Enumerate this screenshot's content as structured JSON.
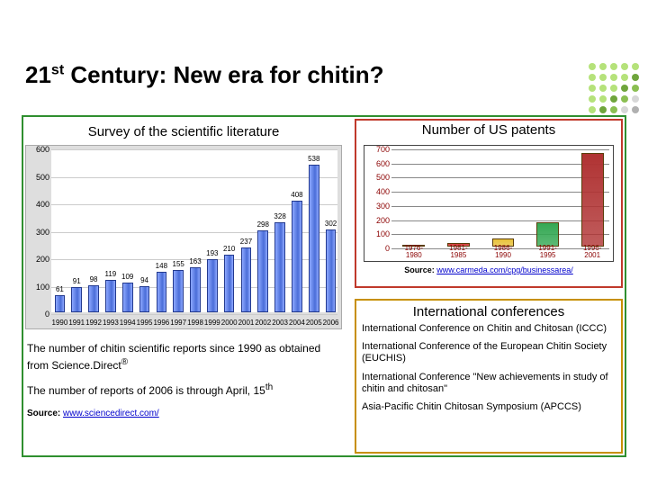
{
  "title_pre": "21",
  "title_sup": "st",
  "title_post": " Century: New era for chitin?",
  "decoration_colors": [
    "#b5e27a",
    "#b5e27a",
    "#b5e27a",
    "#b5e27a",
    "#b5e27a",
    "#b5e27a",
    "#b5e27a",
    "#b5e27a",
    "#b5e27a",
    "#6fa53c",
    "#b5e27a",
    "#b5e27a",
    "#b5e27a",
    "#6fa53c",
    "#8bbf52",
    "#b5e27a",
    "#b5e27a",
    "#6fa53c",
    "#8bbf52",
    "#d7d7d7",
    "#b5e27a",
    "#6fa53c",
    "#8bbf52",
    "#d7d7d7",
    "#b0b0b0"
  ],
  "left": {
    "title": "Survey of the scientific literature",
    "chart": {
      "type": "bar",
      "ylim": [
        0,
        600
      ],
      "ytick_step": 100,
      "grid_color": "#cccccc",
      "plot_bg": "#ffffff",
      "panel_bg": "#dedede",
      "bar_color_start": "#8da8ff",
      "bar_color_mid": "#4a6dd8",
      "bar_border": "#233a8f",
      "categories": [
        "1990",
        "1991",
        "1992",
        "1993",
        "1994",
        "1995",
        "1996",
        "1997",
        "1998",
        "1999",
        "2000",
        "2001",
        "2002",
        "2003",
        "2004",
        "2005",
        "2006"
      ],
      "values": [
        61,
        91,
        98,
        119,
        109,
        94,
        148,
        155,
        163,
        193,
        210,
        237,
        298,
        328,
        408,
        538,
        302
      ]
    },
    "note1_a": "The number of chitin scientific reports since 1990 as obtained from Science.Direct",
    "note1_sup": "®",
    "note2_a": "The number of reports of 2006 is through April, 15",
    "note2_sup": "th",
    "source_label": "Source:",
    "source_link": "www.sciencedirect.com/"
  },
  "patents": {
    "title": "Number of US patents",
    "chart": {
      "type": "bar",
      "ylim": [
        0,
        700
      ],
      "ytick_step": 100,
      "grid_color": "#888888",
      "ylabel_color": "#8b0000",
      "categories": [
        "1976-\n1980",
        "1981-\n1985",
        "1986-\n1990",
        "1991-\n1995",
        "1996-\n2001"
      ],
      "values": [
        8,
        25,
        60,
        170,
        660
      ],
      "bar_colors": [
        "#2e5fa3",
        "#d63a3a",
        "#e8c23a",
        "#34a853",
        "#b03333"
      ],
      "bar_border": "#5a3d0a"
    },
    "source_label": "Source:",
    "source_link": "www.carmeda.com/cpg/businessarea/"
  },
  "conferences": {
    "title": "International conferences",
    "items": [
      "International Conference on Chitin and Chitosan (ICCC)",
      "International Conference of the European Chitin Society (EUCHIS)",
      "International Conference \"New achievements in study of chitin and chitosan\"",
      "Asia-Pacific Chitin Chitosan Symposium (APCCS)"
    ]
  }
}
